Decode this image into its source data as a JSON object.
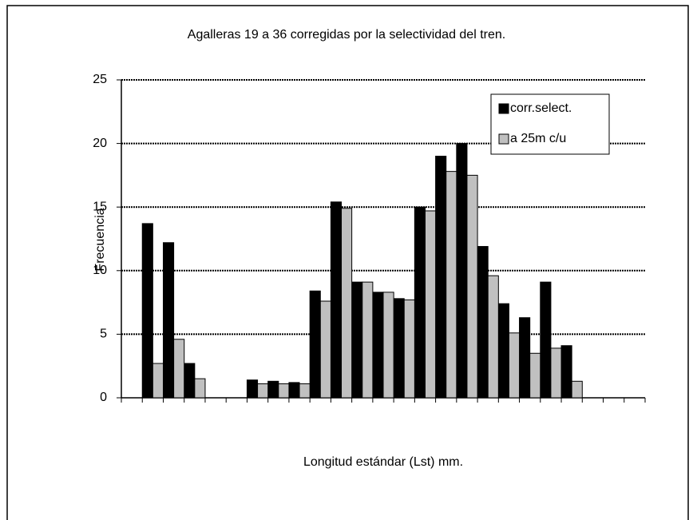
{
  "chart_data": {
    "type": "bar",
    "title": "Agalleras 19 a 36 corregidas por la selectividad del tren.",
    "x_label": "Longitud estándar (Lst) mm.",
    "y_label": "Frecuencia",
    "categories": [
      null,
      null,
      null,
      null,
      null,
      null,
      null,
      null,
      null,
      null,
      null,
      null,
      null,
      null,
      null,
      null,
      null,
      null,
      null,
      null,
      null,
      null,
      null,
      null,
      null
    ],
    "series": [
      {
        "name": "corr.select.",
        "color": "#000000",
        "values": [
          0,
          13.7,
          12.2,
          2.7,
          0,
          0,
          1.4,
          1.3,
          1.2,
          8.4,
          15.4,
          9.1,
          8.3,
          7.8,
          15.0,
          19.0,
          20.0,
          11.9,
          7.4,
          6.3,
          9.1,
          4.1,
          0,
          0,
          0
        ]
      },
      {
        "name": "a 25m c/u",
        "color": "#c0c0c0",
        "values": [
          0,
          2.7,
          4.6,
          1.5,
          0,
          0,
          1.1,
          1.1,
          1.1,
          7.6,
          14.9,
          9.1,
          8.3,
          7.7,
          14.7,
          17.8,
          17.5,
          9.6,
          5.1,
          3.5,
          3.9,
          1.3,
          0,
          0,
          0
        ]
      }
    ],
    "ylim": [
      0,
      25
    ],
    "yticks": [
      0,
      5,
      10,
      15,
      20,
      25
    ],
    "grid": true
  }
}
